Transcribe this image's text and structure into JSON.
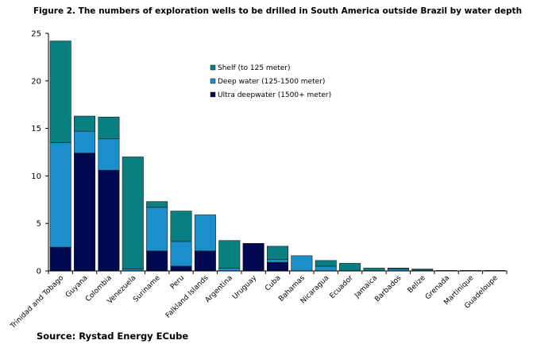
{
  "figure": {
    "title": "Figure 2. The numbers of exploration wells to be drilled in South America outside Brazil by water depth",
    "source": "Source: Rystad Energy ECube"
  },
  "chart_data": {
    "type": "bar",
    "stacked": true,
    "title": "Figure 2. The numbers of exploration wells to be drilled in South America outside Brazil by water depth",
    "xlabel": "",
    "ylabel": "",
    "ylim": [
      0,
      25
    ],
    "yticks": [
      0,
      5,
      10,
      15,
      20,
      25
    ],
    "grid": false,
    "legend_position": "center-top",
    "categories": [
      "Trinidad and Tobago",
      "Guyana",
      "Colombia",
      "Venezuela",
      "Suriname",
      "Peru",
      "Falkland Islands",
      "Argentina",
      "Uruguay",
      "Cuba",
      "Bahamas",
      "Nicaragua",
      "Ecuador",
      "Jamaica",
      "Barbados",
      "Belize",
      "Grenada",
      "Martinique",
      "Guadeloupe"
    ],
    "series": [
      {
        "name": "Ultra deepwater (1500+ meter)",
        "color": "#00084f",
        "values": [
          2.5,
          12.4,
          10.6,
          0.0,
          2.1,
          0.5,
          2.1,
          0.0,
          2.9,
          0.9,
          0.0,
          0.0,
          0.0,
          0.0,
          0.0,
          0.0,
          0.0,
          0.0,
          0.0
        ]
      },
      {
        "name": "Deep water (125-1500 meter)",
        "color": "#1a8fc9",
        "values": [
          11.0,
          2.3,
          3.3,
          0.2,
          4.6,
          2.6,
          3.8,
          0.3,
          0.0,
          0.3,
          1.6,
          0.5,
          0.0,
          0.0,
          0.2,
          0.1,
          0.0,
          0.0,
          0.0
        ]
      },
      {
        "name": "Shelf (to 125 meter)",
        "color": "#0a7f82",
        "values": [
          10.7,
          1.6,
          2.3,
          11.8,
          0.6,
          3.2,
          0.0,
          2.9,
          0.0,
          1.4,
          0.0,
          0.6,
          0.8,
          0.3,
          0.1,
          0.1,
          0.05,
          0.05,
          0.05
        ]
      }
    ],
    "legend_order": [
      "Shelf (to 125 meter)",
      "Deep water (125-1500 meter)",
      "Ultra deepwater (1500+ meter)"
    ]
  }
}
